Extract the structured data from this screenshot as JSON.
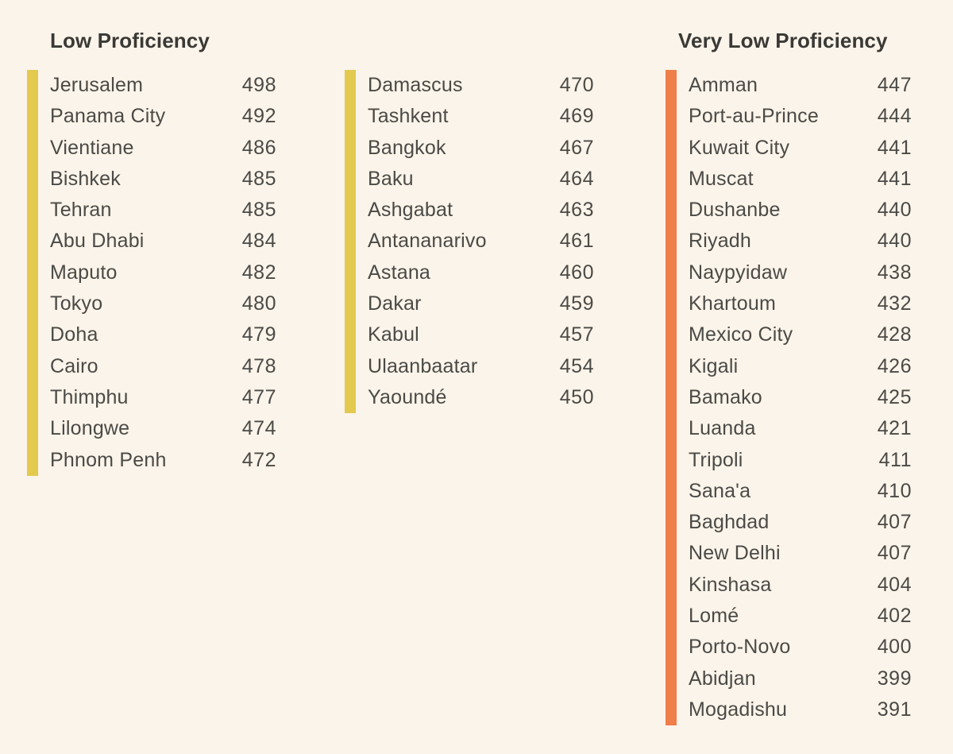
{
  "page": {
    "background": "#FBF4EA",
    "accent_yellow": "#E4C94F",
    "accent_orange": "#EF7E4A",
    "header_text_color": "#3A3935",
    "row_text_color": "#4B4A46"
  },
  "groups": [
    {
      "header": "Low Proficiency",
      "bar_color": "#E4C94F",
      "rows": [
        {
          "city": "Jerusalem",
          "score": 498
        },
        {
          "city": "Panama City",
          "score": 492
        },
        {
          "city": "Vientiane",
          "score": 486
        },
        {
          "city": "Bishkek",
          "score": 485
        },
        {
          "city": "Tehran",
          "score": 485
        },
        {
          "city": "Abu Dhabi",
          "score": 484
        },
        {
          "city": "Maputo",
          "score": 482
        },
        {
          "city": "Tokyo",
          "score": 480
        },
        {
          "city": "Doha",
          "score": 479
        },
        {
          "city": "Cairo",
          "score": 478
        },
        {
          "city": "Thimphu",
          "score": 477
        },
        {
          "city": "Lilongwe",
          "score": 474
        },
        {
          "city": "Phnom Penh",
          "score": 472
        }
      ]
    },
    {
      "header": "",
      "bar_color": "#E4C94F",
      "rows": [
        {
          "city": "Damascus",
          "score": 470
        },
        {
          "city": "Tashkent",
          "score": 469
        },
        {
          "city": "Bangkok",
          "score": 467
        },
        {
          "city": "Baku",
          "score": 464
        },
        {
          "city": "Ashgabat",
          "score": 463
        },
        {
          "city": "Antananarivo",
          "score": 461
        },
        {
          "city": "Astana",
          "score": 460
        },
        {
          "city": "Dakar",
          "score": 459
        },
        {
          "city": "Kabul",
          "score": 457
        },
        {
          "city": "Ulaanbaatar",
          "score": 454
        },
        {
          "city": "Yaoundé",
          "score": 450
        }
      ]
    },
    {
      "header": "Very Low Proficiency",
      "bar_color": "#EF7E4A",
      "rows": [
        {
          "city": "Amman",
          "score": 447
        },
        {
          "city": "Port-au-Prince",
          "score": 444
        },
        {
          "city": "Kuwait City",
          "score": 441
        },
        {
          "city": "Muscat",
          "score": 441
        },
        {
          "city": "Dushanbe",
          "score": 440
        },
        {
          "city": "Riyadh",
          "score": 440
        },
        {
          "city": "Naypyidaw",
          "score": 438
        },
        {
          "city": "Khartoum",
          "score": 432
        },
        {
          "city": "Mexico City",
          "score": 428
        },
        {
          "city": "Kigali",
          "score": 426
        },
        {
          "city": "Bamako",
          "score": 425
        },
        {
          "city": "Luanda",
          "score": 421
        },
        {
          "city": "Tripoli",
          "score": 411
        },
        {
          "city": "Sana'a",
          "score": 410
        },
        {
          "city": "Baghdad",
          "score": 407
        },
        {
          "city": "New Delhi",
          "score": 407
        },
        {
          "city": "Kinshasa",
          "score": 404
        },
        {
          "city": "Lomé",
          "score": 402
        },
        {
          "city": "Porto-Novo",
          "score": 400
        },
        {
          "city": "Abidjan",
          "score": 399
        },
        {
          "city": "Mogadishu",
          "score": 391
        }
      ]
    }
  ],
  "chart_data": {
    "type": "table",
    "bands": [
      {
        "band": "Low Proficiency",
        "color": "#E4C94F",
        "cities": [
          "Jerusalem",
          "Panama City",
          "Vientiane",
          "Bishkek",
          "Tehran",
          "Abu Dhabi",
          "Maputo",
          "Tokyo",
          "Doha",
          "Cairo",
          "Thimphu",
          "Lilongwe",
          "Phnom Penh",
          "Damascus",
          "Tashkent",
          "Bangkok",
          "Baku",
          "Ashgabat",
          "Antananarivo",
          "Astana",
          "Dakar",
          "Kabul",
          "Ulaanbaatar",
          "Yaoundé"
        ],
        "scores": [
          498,
          492,
          486,
          485,
          485,
          484,
          482,
          480,
          479,
          478,
          477,
          474,
          472,
          470,
          469,
          467,
          464,
          463,
          461,
          460,
          459,
          457,
          454,
          450
        ]
      },
      {
        "band": "Very Low Proficiency",
        "color": "#EF7E4A",
        "cities": [
          "Amman",
          "Port-au-Prince",
          "Kuwait City",
          "Muscat",
          "Dushanbe",
          "Riyadh",
          "Naypyidaw",
          "Khartoum",
          "Mexico City",
          "Kigali",
          "Bamako",
          "Luanda",
          "Tripoli",
          "Sana'a",
          "Baghdad",
          "New Delhi",
          "Kinshasa",
          "Lomé",
          "Porto-Novo",
          "Abidjan",
          "Mogadishu"
        ],
        "scores": [
          447,
          444,
          441,
          441,
          440,
          440,
          438,
          432,
          428,
          426,
          425,
          421,
          411,
          410,
          407,
          407,
          404,
          402,
          400,
          399,
          391
        ]
      }
    ],
    "layout": {
      "columns": 3,
      "value_range_visible": [
        391,
        498
      ],
      "score_alignment": "right"
    }
  }
}
